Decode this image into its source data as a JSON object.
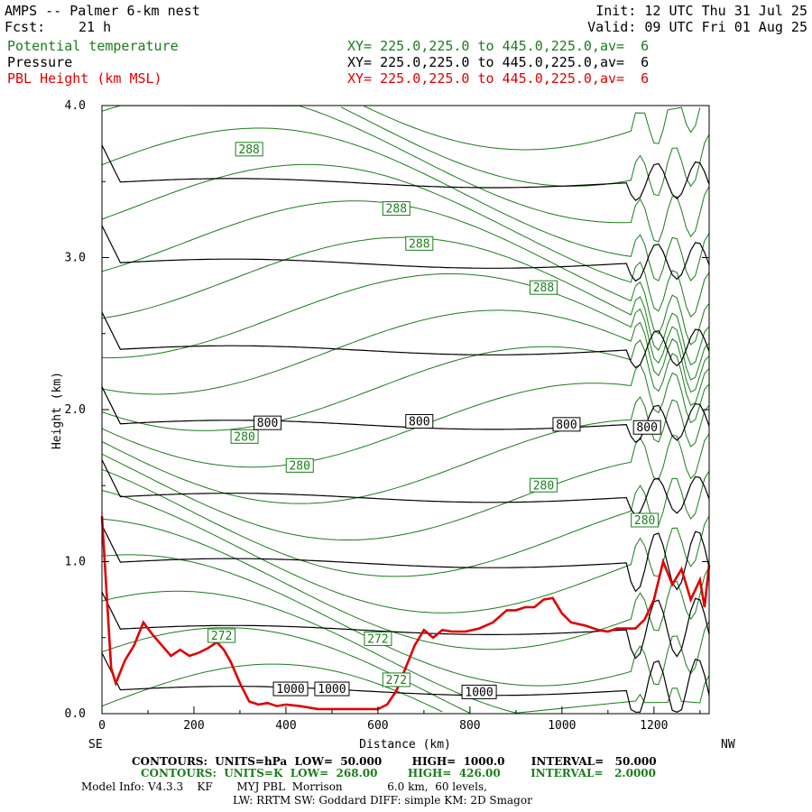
{
  "header": {
    "title": "AMPS -- Palmer 6-km nest",
    "fcst_label": "Fcst:",
    "fcst_value": "21 h",
    "init": "Init: 12 UTC Thu 31 Jul 25",
    "valid": "Valid: 09 UTC Fri 01 Aug 25"
  },
  "fields": [
    {
      "name": "Potential temperature",
      "xy": "XY= 225.0,225.0 to 445.0,225.0,av=  6",
      "color": "#1a7d1a"
    },
    {
      "name": "Pressure",
      "xy": "XY= 225.0,225.0 to 445.0,225.0,av=  6",
      "color": "#000000"
    },
    {
      "name": "PBL Height (km MSL)",
      "xy": "XY= 225.0,225.0 to 445.0,225.0,av=  6",
      "color": "#e00000"
    }
  ],
  "chart_data": {
    "type": "line",
    "ylabel": "Height (km)",
    "xlabel": "Distance (km)",
    "xlim": [
      0,
      1320
    ],
    "ylim": [
      0,
      4.0
    ],
    "x_ticks": [
      0,
      200,
      400,
      600,
      800,
      1000,
      1200
    ],
    "y_ticks": [
      "0.0",
      "1.0",
      "2.0",
      "3.0",
      "4.0"
    ],
    "left_end_label": "SE",
    "right_end_label": "NW",
    "pressure_contours": {
      "units": "hPa",
      "levels_km": [
        0.15,
        0.55,
        0.99,
        1.42,
        1.9,
        2.39,
        2.96,
        3.49
      ],
      "labels": [
        {
          "text": "1000",
          "x": 410,
          "y": 0.16
        },
        {
          "text": "1000",
          "x": 500,
          "y": 0.16
        },
        {
          "text": "1000",
          "x": 820,
          "y": 0.14
        },
        {
          "text": "800",
          "x": 360,
          "y": 1.91
        },
        {
          "text": "800",
          "x": 690,
          "y": 1.92
        },
        {
          "text": "800",
          "x": 1010,
          "y": 1.9
        },
        {
          "text": "800",
          "x": 1185,
          "y": 1.88
        }
      ]
    },
    "theta_contours": {
      "units": "K",
      "labels": [
        {
          "text": "288",
          "x": 320,
          "y": 3.71
        },
        {
          "text": "288",
          "x": 640,
          "y": 3.32
        },
        {
          "text": "288",
          "x": 690,
          "y": 3.09
        },
        {
          "text": "288",
          "x": 960,
          "y": 2.8
        },
        {
          "text": "280",
          "x": 310,
          "y": 1.82
        },
        {
          "text": "280",
          "x": 430,
          "y": 1.63
        },
        {
          "text": "280",
          "x": 960,
          "y": 1.5
        },
        {
          "text": "280",
          "x": 1180,
          "y": 1.27
        },
        {
          "text": "272",
          "x": 260,
          "y": 0.51
        },
        {
          "text": "272",
          "x": 600,
          "y": 0.49
        },
        {
          "text": "272",
          "x": 640,
          "y": 0.22
        }
      ]
    },
    "pbl_height_km": {
      "x": [
        0,
        10,
        20,
        30,
        50,
        70,
        90,
        110,
        130,
        150,
        170,
        190,
        210,
        230,
        250,
        265,
        280,
        300,
        320,
        340,
        360,
        380,
        400,
        430,
        470,
        520,
        560,
        600,
        620,
        640,
        660,
        680,
        700,
        720,
        740,
        760,
        790,
        820,
        850,
        880,
        900,
        920,
        940,
        960,
        980,
        1000,
        1020,
        1050,
        1080,
        1100,
        1120,
        1140,
        1160,
        1180,
        1200,
        1220,
        1240,
        1260,
        1280,
        1300,
        1310,
        1320
      ],
      "y": [
        1.3,
        0.8,
        0.3,
        0.2,
        0.35,
        0.45,
        0.6,
        0.52,
        0.45,
        0.38,
        0.42,
        0.38,
        0.4,
        0.43,
        0.47,
        0.42,
        0.34,
        0.2,
        0.08,
        0.06,
        0.07,
        0.05,
        0.06,
        0.05,
        0.03,
        0.03,
        0.03,
        0.03,
        0.06,
        0.15,
        0.3,
        0.45,
        0.55,
        0.5,
        0.55,
        0.54,
        0.54,
        0.56,
        0.6,
        0.68,
        0.68,
        0.7,
        0.7,
        0.75,
        0.76,
        0.66,
        0.6,
        0.58,
        0.55,
        0.54,
        0.56,
        0.56,
        0.56,
        0.62,
        0.75,
        1.0,
        0.85,
        0.95,
        0.75,
        0.88,
        0.7,
        0.98
      ]
    }
  },
  "footer": {
    "line1": "CONTOURS:  UNITS=hPa  LOW=  50.000        HIGH=  1000.0       INTERVAL=   50.000",
    "line2": "CONTOURS:  UNITS=K  LOW=  268.00        HIGH=  426.00        INTERVAL=   2.0000",
    "line3": "Model Info: V4.3.3    KF       MYJ PBL  Morrison             6.0 km,  60 levels,",
    "line4": "LW: RRTM SW: Goddard DIFF: simple KM: 2D Smagor"
  }
}
